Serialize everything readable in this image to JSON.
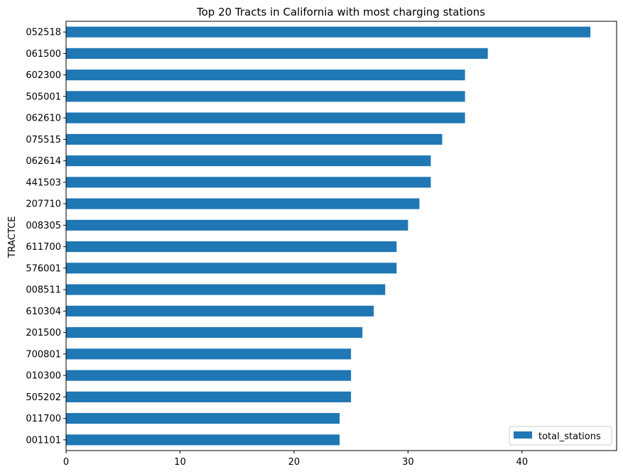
{
  "chart_data": {
    "type": "bar",
    "orientation": "horizontal",
    "title": "Top 20 Tracts in California with most charging stations",
    "xlabel": "",
    "ylabel": "TRACTCE",
    "categories": [
      "052518",
      "061500",
      "602300",
      "505001",
      "062610",
      "075515",
      "062614",
      "441503",
      "207710",
      "008305",
      "611700",
      "576001",
      "008511",
      "610304",
      "201500",
      "700801",
      "010300",
      "505202",
      "011700",
      "001101"
    ],
    "series": [
      {
        "name": "total_stations",
        "color": "#1f77b4",
        "values": [
          46,
          37,
          35,
          35,
          35,
          33,
          32,
          32,
          31,
          30,
          29,
          29,
          28,
          27,
          26,
          25,
          25,
          25,
          24,
          24
        ]
      }
    ],
    "xlim": [
      0,
      48.3
    ],
    "xticks": [
      0,
      10,
      20,
      30,
      40
    ],
    "grid": false,
    "legend": "lower-right"
  }
}
